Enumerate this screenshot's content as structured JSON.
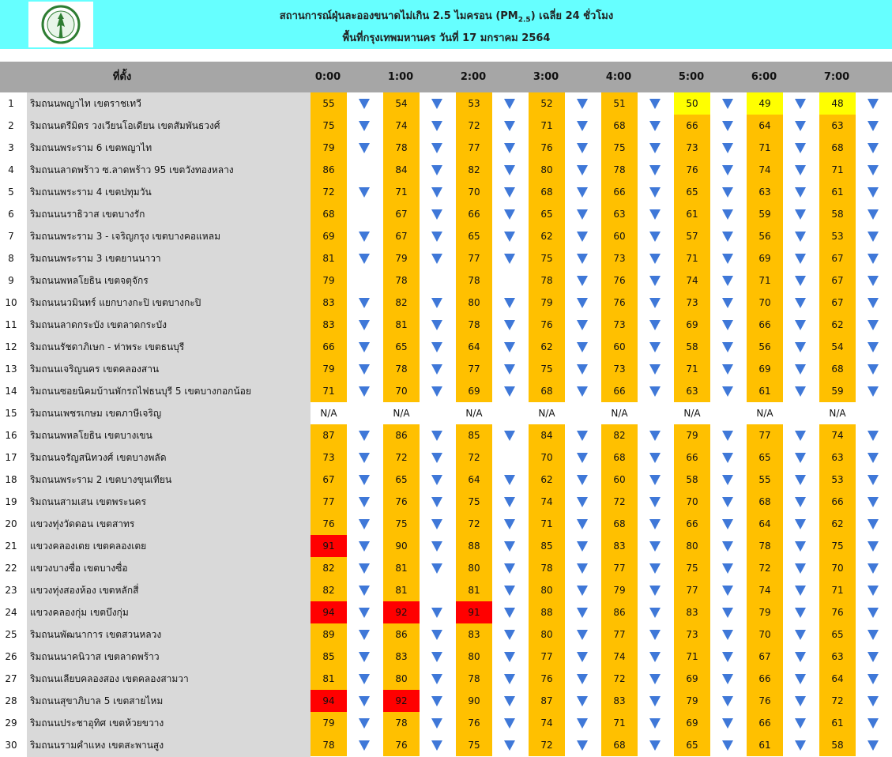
{
  "header": {
    "title_main": "สถานการณ์ฝุ่นละอองขนาดไม่เกิน 2.5 ไมครอน (PM",
    "title_sub": "2.5",
    "title_tail": ") เฉลี่ย 24 ชั่วโมง",
    "subtitle": "พื้นที่กรุงเทพมหานคร วันที่ 17 มกราคม 2564",
    "logo_icon": "bangkok-seal-icon"
  },
  "table": {
    "location_header": "ที่ตั้ง",
    "hours": [
      "0:00",
      "1:00",
      "2:00",
      "3:00",
      "4:00",
      "5:00",
      "6:00",
      "7:00"
    ],
    "colors": {
      "orange": "#ffc000",
      "yellow": "#ffff00",
      "red": "#ff0000",
      "none": "#ffffff",
      "arrow": "#3f78d8",
      "header": "#a6a6a6",
      "location_band": "#d9d9d9",
      "banner": "#66ffff"
    },
    "legend_codes": {
      "o": "orange",
      "y": "yellow",
      "r": "red",
      "n": "none"
    },
    "rows": [
      {
        "num": "1",
        "name": "ริมถนนพญาไท เขตราชเทวี",
        "values": [
          "55",
          "54",
          "53",
          "52",
          "51",
          "50",
          "49",
          "48"
        ],
        "levels": [
          "o",
          "o",
          "o",
          "o",
          "o",
          "y",
          "y",
          "y"
        ],
        "arrows": [
          1,
          1,
          1,
          1,
          1,
          1,
          1,
          1
        ]
      },
      {
        "num": "2",
        "name": "ริมถนนตรีมิตร วงเวียนโอเดียน เขตสัมพันธวงศ์",
        "values": [
          "75",
          "74",
          "72",
          "71",
          "68",
          "66",
          "64",
          "63"
        ],
        "levels": [
          "o",
          "o",
          "o",
          "o",
          "o",
          "o",
          "o",
          "o"
        ],
        "arrows": [
          1,
          1,
          1,
          1,
          1,
          1,
          1,
          1
        ]
      },
      {
        "num": "3",
        "name": "ริมถนนพระราม 6 เขตพญาไท",
        "values": [
          "79",
          "78",
          "77",
          "76",
          "75",
          "73",
          "71",
          "68"
        ],
        "levels": [
          "o",
          "o",
          "o",
          "o",
          "o",
          "o",
          "o",
          "o"
        ],
        "arrows": [
          1,
          1,
          1,
          1,
          1,
          1,
          1,
          1
        ]
      },
      {
        "num": "4",
        "name": "ริมถนนลาดพร้าว ซ.ลาดพร้าว 95 เขตวังทองหลาง",
        "values": [
          "86",
          "84",
          "82",
          "80",
          "78",
          "76",
          "74",
          "71"
        ],
        "levels": [
          "o",
          "o",
          "o",
          "o",
          "o",
          "o",
          "o",
          "o"
        ],
        "arrows": [
          0,
          1,
          1,
          1,
          1,
          1,
          1,
          1
        ]
      },
      {
        "num": "5",
        "name": "ริมถนนพระราม 4 เขตปทุมวัน",
        "values": [
          "72",
          "71",
          "70",
          "68",
          "66",
          "65",
          "63",
          "61"
        ],
        "levels": [
          "o",
          "o",
          "o",
          "o",
          "o",
          "o",
          "o",
          "o"
        ],
        "arrows": [
          1,
          1,
          1,
          1,
          1,
          1,
          1,
          1
        ]
      },
      {
        "num": "6",
        "name": "ริมถนนนราธิวาส เขตบางรัก",
        "values": [
          "68",
          "67",
          "66",
          "65",
          "63",
          "61",
          "59",
          "58"
        ],
        "levels": [
          "o",
          "o",
          "o",
          "o",
          "o",
          "o",
          "o",
          "o"
        ],
        "arrows": [
          0,
          1,
          1,
          1,
          1,
          1,
          1,
          1
        ]
      },
      {
        "num": "7",
        "name": "ริมถนนพระราม 3 - เจริญกรุง เขตบางคอแหลม",
        "values": [
          "69",
          "67",
          "65",
          "62",
          "60",
          "57",
          "56",
          "53"
        ],
        "levels": [
          "o",
          "o",
          "o",
          "o",
          "o",
          "o",
          "o",
          "o"
        ],
        "arrows": [
          1,
          1,
          1,
          1,
          1,
          1,
          1,
          1
        ]
      },
      {
        "num": "8",
        "name": "ริมถนนพระราม 3 เขตยานนาวา",
        "values": [
          "81",
          "79",
          "77",
          "75",
          "73",
          "71",
          "69",
          "67"
        ],
        "levels": [
          "o",
          "o",
          "o",
          "o",
          "o",
          "o",
          "o",
          "o"
        ],
        "arrows": [
          1,
          1,
          1,
          1,
          1,
          1,
          1,
          1
        ]
      },
      {
        "num": "9",
        "name": "ริมถนนพหลโยธิน เขตจตุจักร",
        "values": [
          "79",
          "78",
          "78",
          "78",
          "76",
          "74",
          "71",
          "67"
        ],
        "levels": [
          "o",
          "o",
          "o",
          "o",
          "o",
          "o",
          "o",
          "o"
        ],
        "arrows": [
          0,
          0,
          0,
          1,
          1,
          1,
          1,
          1
        ]
      },
      {
        "num": "10",
        "name": "ริมถนนนวมินทร์ แยกบางกะปิ เขตบางกะปิ",
        "values": [
          "83",
          "82",
          "80",
          "79",
          "76",
          "73",
          "70",
          "67"
        ],
        "levels": [
          "o",
          "o",
          "o",
          "o",
          "o",
          "o",
          "o",
          "o"
        ],
        "arrows": [
          1,
          1,
          1,
          1,
          1,
          1,
          1,
          1
        ]
      },
      {
        "num": "11",
        "name": "ริมถนนลาดกระบัง เขตลาดกระบัง",
        "values": [
          "83",
          "81",
          "78",
          "76",
          "73",
          "69",
          "66",
          "62"
        ],
        "levels": [
          "o",
          "o",
          "o",
          "o",
          "o",
          "o",
          "o",
          "o"
        ],
        "arrows": [
          1,
          1,
          1,
          1,
          1,
          1,
          1,
          1
        ]
      },
      {
        "num": "12",
        "name": "ริมถนนรัชดาภิเษก - ท่าพระ เขตธนบุรี",
        "values": [
          "66",
          "65",
          "64",
          "62",
          "60",
          "58",
          "56",
          "54"
        ],
        "levels": [
          "o",
          "o",
          "o",
          "o",
          "o",
          "o",
          "o",
          "o"
        ],
        "arrows": [
          1,
          1,
          1,
          1,
          1,
          1,
          1,
          1
        ]
      },
      {
        "num": "13",
        "name": "ริมถนนเจริญนคร เขตคลองสาน",
        "values": [
          "79",
          "78",
          "77",
          "75",
          "73",
          "71",
          "69",
          "68"
        ],
        "levels": [
          "o",
          "o",
          "o",
          "o",
          "o",
          "o",
          "o",
          "o"
        ],
        "arrows": [
          1,
          1,
          1,
          1,
          1,
          1,
          1,
          1
        ]
      },
      {
        "num": "14",
        "name": "ริมถนนซอยนิคมบ้านพักรถไฟธนบุรี 5 เขตบางกอกน้อย",
        "values": [
          "71",
          "70",
          "69",
          "68",
          "66",
          "63",
          "61",
          "59"
        ],
        "levels": [
          "o",
          "o",
          "o",
          "o",
          "o",
          "o",
          "o",
          "o"
        ],
        "arrows": [
          1,
          1,
          1,
          1,
          1,
          1,
          1,
          1
        ]
      },
      {
        "num": "15",
        "name": "ริมถนนเพชรเกษม เขตภาษีเจริญ",
        "values": [
          "N/A",
          "N/A",
          "N/A",
          "N/A",
          "N/A",
          "N/A",
          "N/A",
          "N/A"
        ],
        "levels": [
          "n",
          "n",
          "n",
          "n",
          "n",
          "n",
          "n",
          "n"
        ],
        "arrows": [
          0,
          0,
          0,
          0,
          0,
          0,
          0,
          0
        ]
      },
      {
        "num": "16",
        "name": "ริมถนนพหลโยธิน เขตบางเขน",
        "values": [
          "87",
          "86",
          "85",
          "84",
          "82",
          "79",
          "77",
          "74"
        ],
        "levels": [
          "o",
          "o",
          "o",
          "o",
          "o",
          "o",
          "o",
          "o"
        ],
        "arrows": [
          1,
          1,
          1,
          1,
          1,
          1,
          1,
          1
        ]
      },
      {
        "num": "17",
        "name": "ริมถนนจรัญสนิทวงศ์ เขตบางพลัด",
        "values": [
          "73",
          "72",
          "72",
          "70",
          "68",
          "66",
          "65",
          "63"
        ],
        "levels": [
          "o",
          "o",
          "o",
          "o",
          "o",
          "o",
          "o",
          "o"
        ],
        "arrows": [
          1,
          1,
          0,
          1,
          1,
          1,
          1,
          1
        ]
      },
      {
        "num": "18",
        "name": "ริมถนนพระราม 2 เขตบางขุนเทียน",
        "values": [
          "67",
          "65",
          "64",
          "62",
          "60",
          "58",
          "55",
          "53"
        ],
        "levels": [
          "o",
          "o",
          "o",
          "o",
          "o",
          "o",
          "o",
          "o"
        ],
        "arrows": [
          1,
          1,
          1,
          1,
          1,
          1,
          1,
          1
        ]
      },
      {
        "num": "19",
        "name": "ริมถนนสามเสน เขตพระนคร",
        "values": [
          "77",
          "76",
          "75",
          "74",
          "72",
          "70",
          "68",
          "66"
        ],
        "levels": [
          "o",
          "o",
          "o",
          "o",
          "o",
          "o",
          "o",
          "o"
        ],
        "arrows": [
          1,
          1,
          1,
          1,
          1,
          1,
          1,
          1
        ]
      },
      {
        "num": "20",
        "name": "แขวงทุ่งวัดดอน เขตสาทร",
        "values": [
          "76",
          "75",
          "72",
          "71",
          "68",
          "66",
          "64",
          "62"
        ],
        "levels": [
          "o",
          "o",
          "o",
          "o",
          "o",
          "o",
          "o",
          "o"
        ],
        "arrows": [
          1,
          1,
          1,
          1,
          1,
          1,
          1,
          1
        ]
      },
      {
        "num": "21",
        "name": "แขวงคลองเตย เขตคลองเตย",
        "values": [
          "91",
          "90",
          "88",
          "85",
          "83",
          "80",
          "78",
          "75"
        ],
        "levels": [
          "r",
          "o",
          "o",
          "o",
          "o",
          "o",
          "o",
          "o"
        ],
        "arrows": [
          1,
          1,
          1,
          1,
          1,
          1,
          1,
          1
        ]
      },
      {
        "num": "22",
        "name": "แขวงบางซื่อ เขตบางซื่อ",
        "values": [
          "82",
          "81",
          "80",
          "78",
          "77",
          "75",
          "72",
          "70"
        ],
        "levels": [
          "o",
          "o",
          "o",
          "o",
          "o",
          "o",
          "o",
          "o"
        ],
        "arrows": [
          1,
          1,
          1,
          1,
          1,
          1,
          1,
          1
        ]
      },
      {
        "num": "23",
        "name": "แขวงทุ่งสองห้อง เขตหลักสี่",
        "values": [
          "82",
          "81",
          "81",
          "80",
          "79",
          "77",
          "74",
          "71"
        ],
        "levels": [
          "o",
          "o",
          "o",
          "o",
          "o",
          "o",
          "o",
          "o"
        ],
        "arrows": [
          1,
          0,
          1,
          1,
          1,
          1,
          1,
          1
        ]
      },
      {
        "num": "24",
        "name": "แขวงคลองกุ่ม เขตบึงกุ่ม",
        "values": [
          "94",
          "92",
          "91",
          "88",
          "86",
          "83",
          "79",
          "76"
        ],
        "levels": [
          "r",
          "r",
          "r",
          "o",
          "o",
          "o",
          "o",
          "o"
        ],
        "arrows": [
          1,
          1,
          1,
          1,
          1,
          1,
          1,
          1
        ]
      },
      {
        "num": "25",
        "name": "ริมถนนพัฒนาการ เขตสวนหลวง",
        "values": [
          "89",
          "86",
          "83",
          "80",
          "77",
          "73",
          "70",
          "65"
        ],
        "levels": [
          "o",
          "o",
          "o",
          "o",
          "o",
          "o",
          "o",
          "o"
        ],
        "arrows": [
          1,
          1,
          1,
          1,
          1,
          1,
          1,
          1
        ]
      },
      {
        "num": "26",
        "name": "ริมถนนนาคนิวาส เขตลาดพร้าว",
        "values": [
          "85",
          "83",
          "80",
          "77",
          "74",
          "71",
          "67",
          "63"
        ],
        "levels": [
          "o",
          "o",
          "o",
          "o",
          "o",
          "o",
          "o",
          "o"
        ],
        "arrows": [
          1,
          1,
          1,
          1,
          1,
          1,
          1,
          1
        ]
      },
      {
        "num": "27",
        "name": "ริมถนนเลียบคลองสอง เขตคลองสามวา",
        "values": [
          "81",
          "80",
          "78",
          "76",
          "72",
          "69",
          "66",
          "64"
        ],
        "levels": [
          "o",
          "o",
          "o",
          "o",
          "o",
          "o",
          "o",
          "o"
        ],
        "arrows": [
          1,
          1,
          1,
          1,
          1,
          1,
          1,
          1
        ]
      },
      {
        "num": "28",
        "name": "ริมถนนสุขาภิบาล 5 เขตสายไหม",
        "values": [
          "94",
          "92",
          "90",
          "87",
          "83",
          "79",
          "76",
          "72"
        ],
        "levels": [
          "r",
          "r",
          "o",
          "o",
          "o",
          "o",
          "o",
          "o"
        ],
        "arrows": [
          1,
          1,
          1,
          1,
          1,
          1,
          1,
          1
        ]
      },
      {
        "num": "29",
        "name": "ริมถนนประชาอุทิศ เขตห้วยขวาง",
        "values": [
          "79",
          "78",
          "76",
          "74",
          "71",
          "69",
          "66",
          "61"
        ],
        "levels": [
          "o",
          "o",
          "o",
          "o",
          "o",
          "o",
          "o",
          "o"
        ],
        "arrows": [
          1,
          1,
          1,
          1,
          1,
          1,
          1,
          1
        ]
      },
      {
        "num": "30",
        "name": "ริมถนนรามคำแหง เขตสะพานสูง",
        "values": [
          "78",
          "76",
          "75",
          "72",
          "68",
          "65",
          "61",
          "58"
        ],
        "levels": [
          "o",
          "o",
          "o",
          "o",
          "o",
          "o",
          "o",
          "o"
        ],
        "arrows": [
          1,
          1,
          1,
          1,
          1,
          1,
          1,
          1
        ]
      }
    ]
  }
}
